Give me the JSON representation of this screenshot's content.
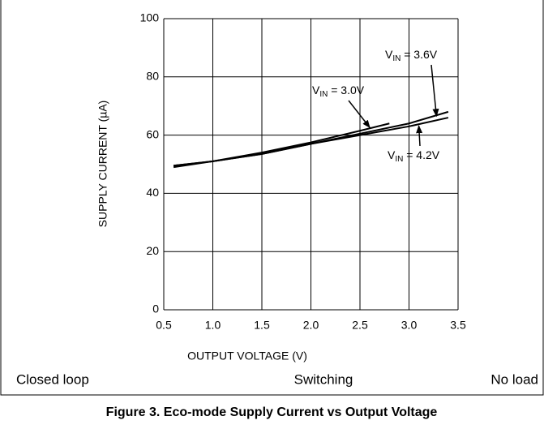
{
  "chart_data": {
    "type": "line",
    "xlabel": "OUTPUT VOLTAGE (V)",
    "ylabel": "SUPPLY CURRENT (µA)",
    "xlim": [
      0.5,
      3.5
    ],
    "xticks": [
      0.5,
      {
        "value": 1,
        "label": "1.0"
      },
      1.5,
      {
        "value": 2,
        "label": "2.0"
      },
      2.5,
      {
        "value": 3,
        "label": "3.0"
      },
      3.5
    ],
    "ylim": [
      0,
      100
    ],
    "yticks": [
      0,
      20,
      40,
      60,
      80,
      100
    ],
    "grid": true,
    "series": [
      {
        "label": [
          "V",
          "IN",
          " = 3.0V"
        ],
        "color": "#000000",
        "x": [
          0.6,
          1.0,
          1.5,
          2.0,
          2.5,
          2.8
        ],
        "values": [
          49.5,
          51,
          54,
          57.5,
          61.5,
          64
        ]
      },
      {
        "label": [
          "V",
          "IN",
          " = 3.6V"
        ],
        "color": "#000000",
        "x": [
          0.6,
          1.0,
          1.5,
          2.0,
          2.5,
          3.0,
          3.4
        ],
        "values": [
          49,
          51,
          53.5,
          57,
          60.5,
          64,
          68
        ]
      },
      {
        "label": [
          "V",
          "IN",
          " = 4.2V"
        ],
        "color": "#000000",
        "x": [
          0.6,
          1.0,
          1.5,
          2.0,
          2.5,
          3.0,
          3.4
        ],
        "values": [
          49.5,
          51,
          53.5,
          57,
          60,
          63,
          66
        ]
      }
    ]
  },
  "conditions": [
    "Closed loop",
    "Switching",
    "No load"
  ],
  "caption": "Figure 3. Eco-mode Supply Current vs Output Voltage"
}
